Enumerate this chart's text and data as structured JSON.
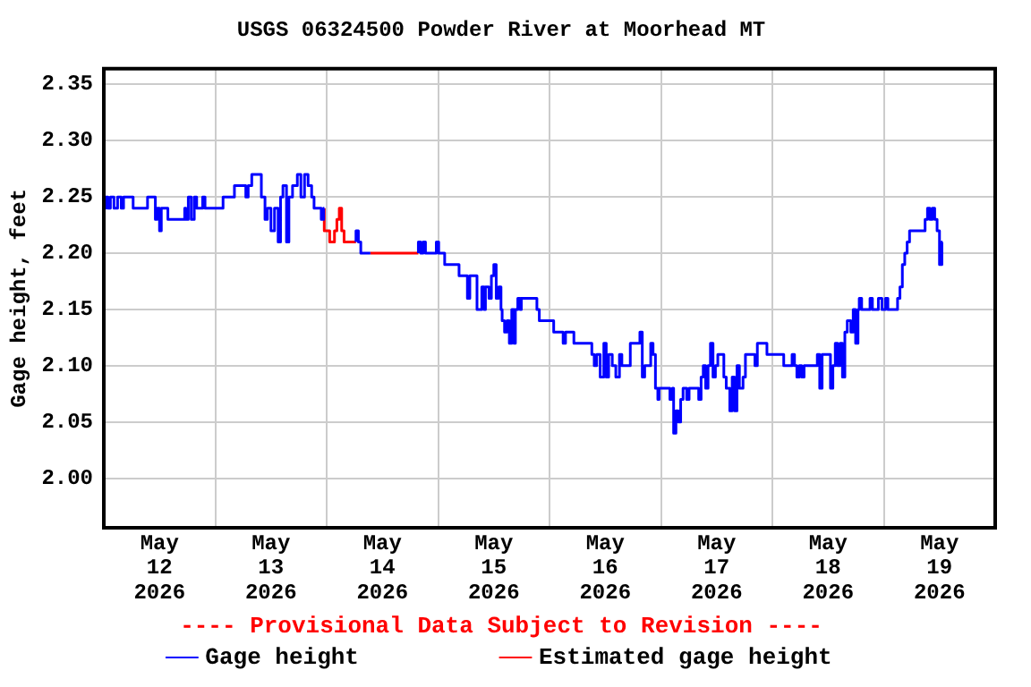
{
  "chart_data": {
    "type": "step",
    "title": "USGS 06324500 Powder River at Moorhead MT",
    "ylabel": "Gage height, feet",
    "annotations": [
      "---- Provisional Data Subject to Revision ----"
    ],
    "xlim": [
      "2026-05-12T00:00",
      "2026-05-20T00:00"
    ],
    "xticks": [
      {
        "value": "2026-05-12T12:00",
        "label": "May\n12\n2026"
      },
      {
        "value": "2026-05-13T12:00",
        "label": "May\n13\n2026"
      },
      {
        "value": "2026-05-14T12:00",
        "label": "May\n14\n2026"
      },
      {
        "value": "2026-05-15T12:00",
        "label": "May\n15\n2026"
      },
      {
        "value": "2026-05-16T12:00",
        "label": "May\n16\n2026"
      },
      {
        "value": "2026-05-17T12:00",
        "label": "May\n17\n2026"
      },
      {
        "value": "2026-05-18T12:00",
        "label": "May\n18\n2026"
      },
      {
        "value": "2026-05-19T12:00",
        "label": "May\n19\n2026"
      },
      {
        "value": "2026-05-13T00:00",
        "label": null
      },
      {
        "value": "2026-05-14T00:00",
        "label": null
      },
      {
        "value": "2026-05-15T00:00",
        "label": null
      },
      {
        "value": "2026-05-16T00:00",
        "label": null
      },
      {
        "value": "2026-05-17T00:00",
        "label": null
      },
      {
        "value": "2026-05-18T00:00",
        "label": null
      },
      {
        "value": "2026-05-19T00:00",
        "label": null
      }
    ],
    "ylim": [
      1.956,
      2.364
    ],
    "yticks": [
      {
        "value": 2.0,
        "label": "2.00"
      },
      {
        "value": 2.05,
        "label": "2.05"
      },
      {
        "value": 2.1,
        "label": "2.10"
      },
      {
        "value": 2.15,
        "label": "2.15"
      },
      {
        "value": 2.2,
        "label": "2.20"
      },
      {
        "value": 2.25,
        "label": "2.25"
      },
      {
        "value": 2.3,
        "label": "2.30"
      },
      {
        "value": 2.35,
        "label": "2.35"
      }
    ],
    "grid": true,
    "legend": "bottom",
    "marker": "none",
    "line_style": "solid",
    "series": [
      {
        "name": "Gage height",
        "color": "#0000ff",
        "x": [
          "2026-05-12T00:00",
          "2026-05-12T00:23",
          "2026-05-12T00:54",
          "2026-05-12T01:25",
          "2026-05-12T02:11",
          "2026-05-12T02:58",
          "2026-05-12T03:45",
          "2026-05-12T04:15",
          "2026-05-12T04:31",
          "2026-05-12T06:19",
          "2026-05-12T06:35",
          "2026-05-12T09:25",
          "2026-05-12T09:41",
          "2026-05-12T11:06",
          "2026-05-12T11:29",
          "2026-05-12T12:00",
          "2026-05-12T12:23",
          "2026-05-12T12:46",
          "2026-05-12T13:48",
          "2026-05-12T14:19",
          "2026-05-12T16:08",
          "2026-05-12T17:25",
          "2026-05-12T17:41",
          "2026-05-12T18:12",
          "2026-05-12T18:50",
          "2026-05-12T19:29",
          "2026-05-12T20:00",
          "2026-05-12T21:17",
          "2026-05-12T21:48",
          "2026-05-12T22:35",
          "2026-05-13T01:41",
          "2026-05-13T01:56",
          "2026-05-13T04:08",
          "2026-05-13T04:31",
          "2026-05-13T06:35",
          "2026-05-13T07:06",
          "2026-05-13T07:52",
          "2026-05-13T08:39",
          "2026-05-13T09:56",
          "2026-05-13T10:43",
          "2026-05-13T11:14",
          "2026-05-13T12:00",
          "2026-05-13T12:46",
          "2026-05-13T13:33",
          "2026-05-13T14:04",
          "2026-05-13T14:35",
          "2026-05-13T15:21",
          "2026-05-13T15:52",
          "2026-05-13T16:39",
          "2026-05-13T17:41",
          "2026-05-13T18:27",
          "2026-05-13T19:14",
          "2026-05-13T20:00",
          "2026-05-13T20:46",
          "2026-05-13T21:17",
          "2026-05-13T21:48",
          "2026-05-13T22:50",
          "2026-05-13T23:21",
          "2026-05-13T23:29",
          "2026-05-13T23:30",
          "2026-05-14T06:19",
          "2026-05-14T06:50",
          "2026-05-14T07:21",
          "2026-05-14T08:08",
          "2026-05-14T09:25",
          "2026-05-14T09:30",
          "2026-05-14T19:45",
          "2026-05-14T20:15",
          "2026-05-14T20:46",
          "2026-05-14T21:17",
          "2026-05-14T21:48",
          "2026-05-14T23:37",
          "2026-05-15T00:08",
          "2026-05-15T01:25",
          "2026-05-15T01:56",
          "2026-05-15T04:31",
          "2026-05-15T04:46",
          "2026-05-15T06:19",
          "2026-05-15T06:50",
          "2026-05-15T07:21",
          "2026-05-15T08:23",
          "2026-05-15T09:25",
          "2026-05-15T09:56",
          "2026-05-15T10:12",
          "2026-05-15T10:58",
          "2026-05-15T11:29",
          "2026-05-15T12:00",
          "2026-05-15T12:31",
          "2026-05-15T13:02",
          "2026-05-15T13:33",
          "2026-05-15T13:48",
          "2026-05-15T14:19",
          "2026-05-15T14:50",
          "2026-05-15T15:21",
          "2026-05-15T15:52",
          "2026-05-15T16:23",
          "2026-05-15T16:39",
          "2026-05-15T17:10",
          "2026-05-15T17:41",
          "2026-05-15T17:56",
          "2026-05-15T18:27",
          "2026-05-15T21:17",
          "2026-05-15T21:48",
          "2026-05-15T22:35",
          "2026-05-16T00:54",
          "2026-05-16T01:09",
          "2026-05-16T02:56",
          "2026-05-16T03:27",
          "2026-05-16T03:58",
          "2026-05-16T05:15",
          "2026-05-16T05:31",
          "2026-05-16T09:07",
          "2026-05-16T09:38",
          "2026-05-16T10:09",
          "2026-05-16T10:55",
          "2026-05-16T11:42",
          "2026-05-16T12:13",
          "2026-05-16T12:44",
          "2026-05-16T13:31",
          "2026-05-16T14:17",
          "2026-05-16T15:04",
          "2026-05-16T15:35",
          "2026-05-16T16:22",
          "2026-05-16T17:24",
          "2026-05-16T18:10",
          "2026-05-16T19:28",
          "2026-05-16T19:59",
          "2026-05-16T20:30",
          "2026-05-16T21:01",
          "2026-05-16T21:48",
          "2026-05-16T22:18",
          "2026-05-16T22:49",
          "2026-05-16T23:20",
          "2026-05-16T23:36",
          "2026-05-17T01:56",
          "2026-05-17T02:28",
          "2026-05-17T02:44",
          "2026-05-17T03:14",
          "2026-05-17T03:45",
          "2026-05-17T04:15",
          "2026-05-17T04:46",
          "2026-05-17T05:33",
          "2026-05-17T06:04",
          "2026-05-17T06:35",
          "2026-05-17T08:08",
          "2026-05-17T08:39",
          "2026-05-17T09:07",
          "2026-05-17T09:38",
          "2026-05-17T10:09",
          "2026-05-17T10:40",
          "2026-05-17T11:13",
          "2026-05-17T11:44",
          "2026-05-17T12:15",
          "2026-05-17T12:46",
          "2026-05-17T13:33",
          "2026-05-17T14:04",
          "2026-05-17T14:50",
          "2026-05-17T15:21",
          "2026-05-17T15:52",
          "2026-05-17T16:23",
          "2026-05-17T16:54",
          "2026-05-17T17:41",
          "2026-05-17T18:12",
          "2026-05-17T18:43",
          "2026-05-17T20:15",
          "2026-05-17T20:46",
          "2026-05-17T21:17",
          "2026-05-17T22:50",
          "2026-05-17T23:21",
          "2026-05-18T02:27",
          "2026-05-18T02:58",
          "2026-05-18T04:15",
          "2026-05-18T04:46",
          "2026-05-18T05:17",
          "2026-05-18T05:48",
          "2026-05-18T06:19",
          "2026-05-18T06:50",
          "2026-05-18T07:21",
          "2026-05-18T09:41",
          "2026-05-18T10:12",
          "2026-05-18T10:43",
          "2026-05-18T11:14",
          "2026-05-18T12:31",
          "2026-05-18T13:02",
          "2026-05-18T13:33",
          "2026-05-18T14:04",
          "2026-05-18T14:35",
          "2026-05-18T15:06",
          "2026-05-18T15:37",
          "2026-05-18T16:08",
          "2026-05-18T16:54",
          "2026-05-18T17:25",
          "2026-05-18T17:56",
          "2026-05-18T18:27",
          "2026-05-18T18:43",
          "2026-05-18T19:14",
          "2026-05-18T19:45",
          "2026-05-18T21:02",
          "2026-05-18T21:33",
          "2026-05-18T22:04",
          "2026-05-18T22:50",
          "2026-05-18T23:36",
          "2026-05-19T00:22",
          "2026-05-19T00:53",
          "2026-05-19T01:25",
          "2026-05-19T02:58",
          "2026-05-19T03:29",
          "2026-05-19T04:00",
          "2026-05-19T04:31",
          "2026-05-19T05:02",
          "2026-05-19T05:33",
          "2026-05-19T06:35",
          "2026-05-19T08:54",
          "2026-05-19T09:25",
          "2026-05-19T09:56",
          "2026-05-19T10:27",
          "2026-05-19T10:58",
          "2026-05-19T11:29",
          "2026-05-19T12:00",
          "2026-05-19T12:31",
          "2026-05-19T12:39"
        ],
        "values": [
          2.25,
          2.24,
          2.25,
          2.24,
          2.25,
          2.24,
          2.25,
          2.24,
          2.25,
          2.25,
          2.24,
          2.24,
          2.25,
          2.25,
          2.23,
          2.24,
          2.22,
          2.24,
          2.24,
          2.23,
          2.23,
          2.23,
          2.24,
          2.23,
          2.25,
          2.23,
          2.25,
          2.24,
          2.25,
          2.24,
          2.24,
          2.25,
          2.25,
          2.26,
          2.26,
          2.25,
          2.26,
          2.27,
          2.27,
          2.25,
          2.23,
          2.24,
          2.22,
          2.24,
          2.21,
          2.25,
          2.26,
          2.21,
          2.25,
          2.26,
          2.27,
          2.25,
          2.27,
          2.26,
          2.25,
          2.24,
          2.24,
          2.23,
          2.24,
          null,
          2.21,
          2.22,
          2.21,
          2.2,
          2.2,
          null,
          2.2,
          2.21,
          2.2,
          2.21,
          2.2,
          2.2,
          2.21,
          2.2,
          2.19,
          2.19,
          2.18,
          2.18,
          2.16,
          2.18,
          2.18,
          2.15,
          2.17,
          2.15,
          2.17,
          2.16,
          2.18,
          2.19,
          2.16,
          2.17,
          2.15,
          2.14,
          2.13,
          2.14,
          2.12,
          2.15,
          2.12,
          2.15,
          2.16,
          2.15,
          2.16,
          2.16,
          2.15,
          2.14,
          2.14,
          2.13,
          2.13,
          2.12,
          2.13,
          2.13,
          2.12,
          2.12,
          2.11,
          2.1,
          2.11,
          2.09,
          2.12,
          2.09,
          2.11,
          2.1,
          2.09,
          2.11,
          2.1,
          2.1,
          2.12,
          2.12,
          2.13,
          2.09,
          2.1,
          2.1,
          2.12,
          2.11,
          2.08,
          2.07,
          2.08,
          2.07,
          2.08,
          2.04,
          2.06,
          2.05,
          2.07,
          2.08,
          2.07,
          2.08,
          2.08,
          2.07,
          2.09,
          2.1,
          2.08,
          2.1,
          2.12,
          2.09,
          2.1,
          2.11,
          2.11,
          2.09,
          2.08,
          2.06,
          2.09,
          2.06,
          2.1,
          2.08,
          2.09,
          2.11,
          2.11,
          2.1,
          2.12,
          2.12,
          2.11,
          2.11,
          2.1,
          2.1,
          2.11,
          2.1,
          2.09,
          2.1,
          2.09,
          2.1,
          2.1,
          2.11,
          2.08,
          2.11,
          2.11,
          2.08,
          2.1,
          2.12,
          2.1,
          2.12,
          2.09,
          2.13,
          2.14,
          2.13,
          2.15,
          2.12,
          2.15,
          2.16,
          2.15,
          2.15,
          2.16,
          2.15,
          2.15,
          2.16,
          2.15,
          2.16,
          2.15,
          2.15,
          2.16,
          2.17,
          2.19,
          2.2,
          2.21,
          2.22,
          2.22,
          2.23,
          2.24,
          2.23,
          2.24,
          2.23,
          2.22,
          2.19,
          2.21
        ]
      },
      {
        "name": "Estimated gage height",
        "color": "#ff0000",
        "x": [
          "2026-05-13T23:29",
          "2026-05-13T23:36",
          "2026-05-14T00:39",
          "2026-05-14T01:41",
          "2026-05-14T02:12",
          "2026-05-14T02:43",
          "2026-05-14T03:14",
          "2026-05-14T03:45",
          "2026-05-14T04:15",
          "2026-05-14T06:19",
          "2026-05-14T07:00",
          "2026-05-14T09:25",
          "2026-05-14T19:45"
        ],
        "values": [
          2.24,
          2.22,
          2.22,
          2.21,
          2.22,
          2.23,
          2.24,
          2.22,
          2.21,
          2.21,
          null,
          2.2,
          2.2
        ]
      }
    ]
  }
}
